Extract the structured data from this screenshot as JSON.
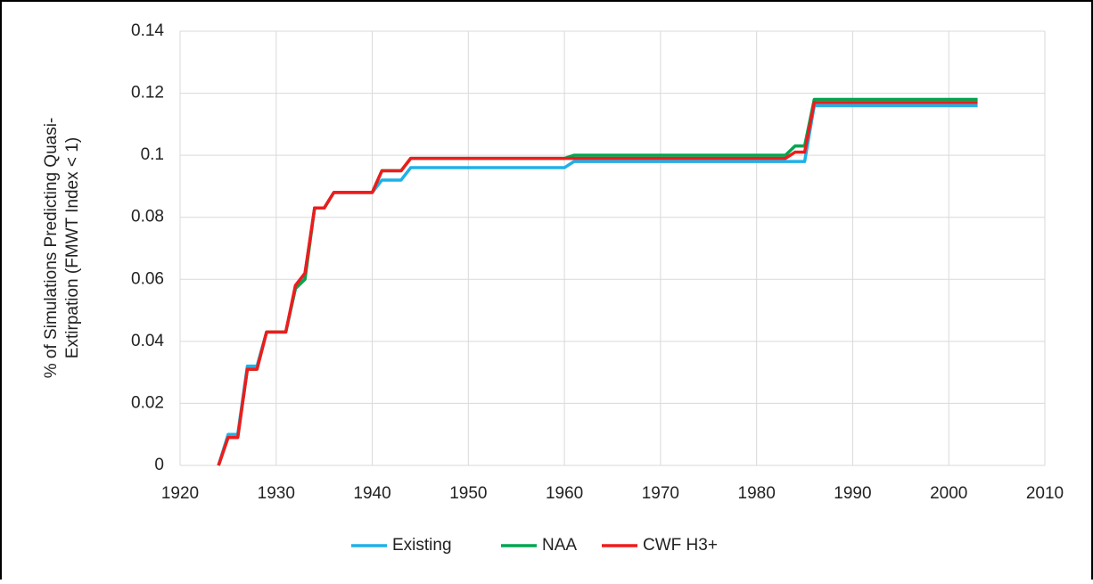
{
  "chart_data": {
    "type": "line",
    "ylabel": [
      "% of Simulations Predicting Quasi-",
      "Extirpation (FMWT Index < 1)"
    ],
    "x": [
      1924,
      1925,
      1926,
      1927,
      1928,
      1929,
      1930,
      1931,
      1932,
      1933,
      1934,
      1935,
      1936,
      1940,
      1941,
      1943,
      1944,
      1960,
      1961,
      1983,
      1984,
      1985,
      1986,
      2003
    ],
    "series": [
      {
        "name": "Existing",
        "color": "#1eb1e7",
        "values": [
          0,
          0.01,
          0.01,
          0.032,
          0.032,
          0.043,
          0.043,
          0.043,
          0.057,
          0.062,
          0.083,
          0.083,
          0.088,
          0.088,
          0.092,
          0.092,
          0.096,
          0.096,
          0.098,
          0.098,
          0.098,
          0.098,
          0.116,
          0.116
        ]
      },
      {
        "name": "NAA",
        "color": "#00a650",
        "values": [
          0,
          0.009,
          0.009,
          0.031,
          0.031,
          0.043,
          0.043,
          0.043,
          0.057,
          0.06,
          0.083,
          0.083,
          0.088,
          0.088,
          0.095,
          0.095,
          0.099,
          0.099,
          0.1,
          0.1,
          0.103,
          0.103,
          0.118,
          0.118
        ]
      },
      {
        "name": "CWF H3+",
        "color": "#ee1c1c",
        "values": [
          0,
          0.009,
          0.009,
          0.031,
          0.031,
          0.043,
          0.043,
          0.043,
          0.058,
          0.062,
          0.083,
          0.083,
          0.088,
          0.088,
          0.095,
          0.095,
          0.099,
          0.099,
          0.099,
          0.099,
          0.101,
          0.101,
          0.117,
          0.117
        ]
      }
    ],
    "xlim": [
      1920,
      2010
    ],
    "xticks": [
      1920,
      1930,
      1940,
      1950,
      1960,
      1970,
      1980,
      1990,
      2000,
      2010
    ],
    "ylim": [
      0,
      0.14
    ],
    "yticks": [
      0,
      0.02,
      0.04,
      0.06,
      0.08,
      0.1,
      0.12,
      0.14
    ],
    "grid": true,
    "legend": "bottom"
  }
}
